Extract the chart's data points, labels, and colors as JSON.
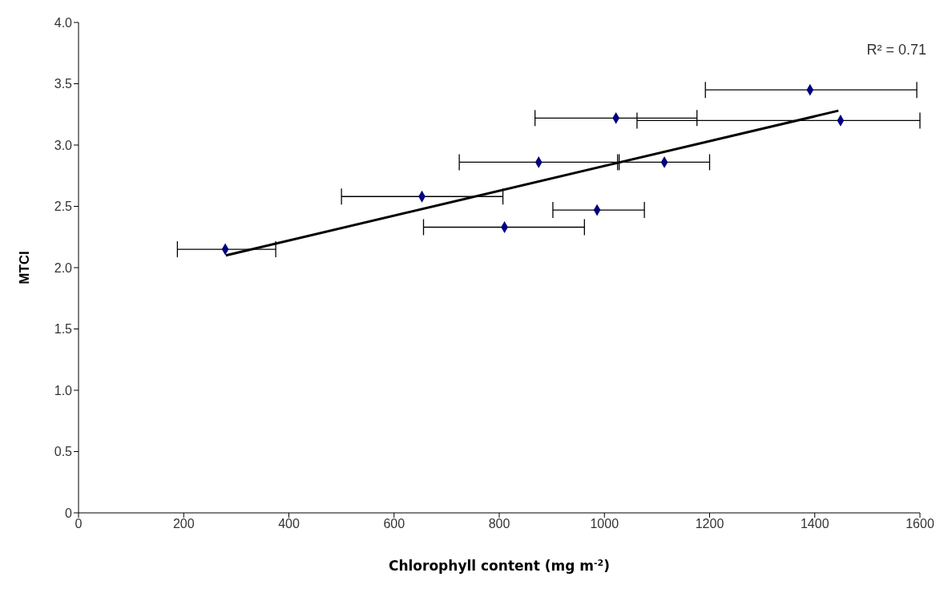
{
  "chart_data": {
    "type": "scatter",
    "xlabel": "Chlorophyll content (mg m$^{-2}$)",
    "ylabel": "MTCI",
    "annotations": [
      "R² = 0.71"
    ],
    "xlim": [
      0,
      1600
    ],
    "xticks": [
      0,
      200,
      400,
      600,
      800,
      1000,
      1200,
      1400,
      1600
    ],
    "ylim": [
      0,
      4
    ],
    "yticks": [
      0,
      0.5,
      {
        "value": 1,
        "label": "1.0"
      },
      1.5,
      {
        "value": 2,
        "label": "2.0"
      },
      2.5,
      {
        "value": 3,
        "label": "3.0"
      },
      3.5,
      {
        "value": 4,
        "label": "4.0"
      }
    ],
    "marker": "diamond",
    "series": [
      {
        "color": "#000080",
        "x": [
          279,
          653,
          810,
          875,
          986,
          1022,
          1114,
          1391,
          1449
        ],
        "values": [
          2.15,
          2.58,
          2.33,
          2.86,
          2.47,
          3.22,
          2.86,
          3.45,
          3.2
        ],
        "xerrors": [
          [
            188,
            375
          ],
          [
            500,
            807
          ],
          [
            656,
            962
          ],
          [
            724,
            1025
          ],
          [
            902,
            1076
          ],
          [
            868,
            1176
          ],
          [
            1028,
            1200
          ],
          [
            1192,
            1594
          ],
          [
            1062,
            1600
          ]
        ]
      },
      {
        "type": "line",
        "marker": "none",
        "color": "#000000",
        "x": [
          280,
          1445
        ],
        "values": [
          2.1,
          3.28
        ]
      }
    ]
  }
}
